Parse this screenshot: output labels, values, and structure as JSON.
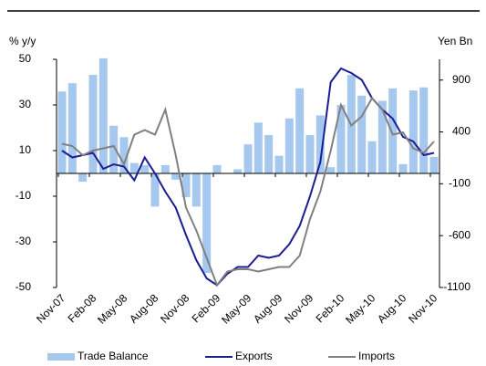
{
  "chart_data": {
    "type": "bar-line",
    "y_label": "% y/y",
    "y2_label": "Yen Bn",
    "categories": [
      "Nov-07",
      null,
      null,
      "Feb-08",
      null,
      null,
      "May-08",
      null,
      null,
      "Aug-08",
      null,
      null,
      "Nov-08",
      null,
      null,
      "Feb-09",
      null,
      null,
      "May-09",
      null,
      null,
      "Aug-09",
      null,
      null,
      "Nov-09",
      null,
      null,
      "Feb-10",
      null,
      null,
      "May-10",
      null,
      null,
      "Aug-10",
      null,
      null,
      "Nov-10"
    ],
    "series": [
      {
        "name": "Trade Balance",
        "type": "bar",
        "axis": "y2",
        "color": "#a6c8ee",
        "values": [
          790,
          870,
          -80,
          950,
          1110,
          460,
          350,
          100,
          80,
          -320,
          80,
          -60,
          -230,
          -320,
          -960,
          80,
          0,
          40,
          280,
          490,
          370,
          170,
          530,
          820,
          370,
          560,
          60,
          660,
          950,
          750,
          310,
          700,
          820,
          90,
          800,
          830,
          160
        ]
      },
      {
        "name": "Exports",
        "type": "line",
        "color": "#1c1c94",
        "values": [
          10,
          7,
          8,
          9,
          2,
          4,
          3,
          -3,
          7,
          0,
          -8,
          -15,
          -27,
          -38,
          -46,
          -49,
          -44,
          -41,
          -41,
          -36,
          -37,
          -36,
          -31,
          -23,
          -10,
          5,
          40,
          46,
          44,
          41,
          33,
          28,
          24,
          16,
          14,
          8,
          9
        ]
      },
      {
        "name": "Imports",
        "type": "line",
        "color": "#808080",
        "values": [
          13,
          12,
          8,
          10,
          11,
          12,
          4,
          17,
          19,
          17,
          28,
          8,
          -15,
          -25,
          -37,
          -49,
          -43,
          -42,
          -42,
          -43,
          -42,
          -41,
          -41,
          -36,
          -20,
          -8,
          10,
          30,
          21,
          25,
          33,
          28,
          17,
          18,
          11,
          9,
          14
        ]
      }
    ],
    "ylim": [
      -50,
      50
    ],
    "yticks": [
      50,
      30,
      10,
      -10,
      -30,
      -50
    ],
    "y2lim": [
      -1100,
      1100
    ],
    "y2ticks": [
      900,
      400,
      -100,
      -600,
      -1100
    ]
  }
}
